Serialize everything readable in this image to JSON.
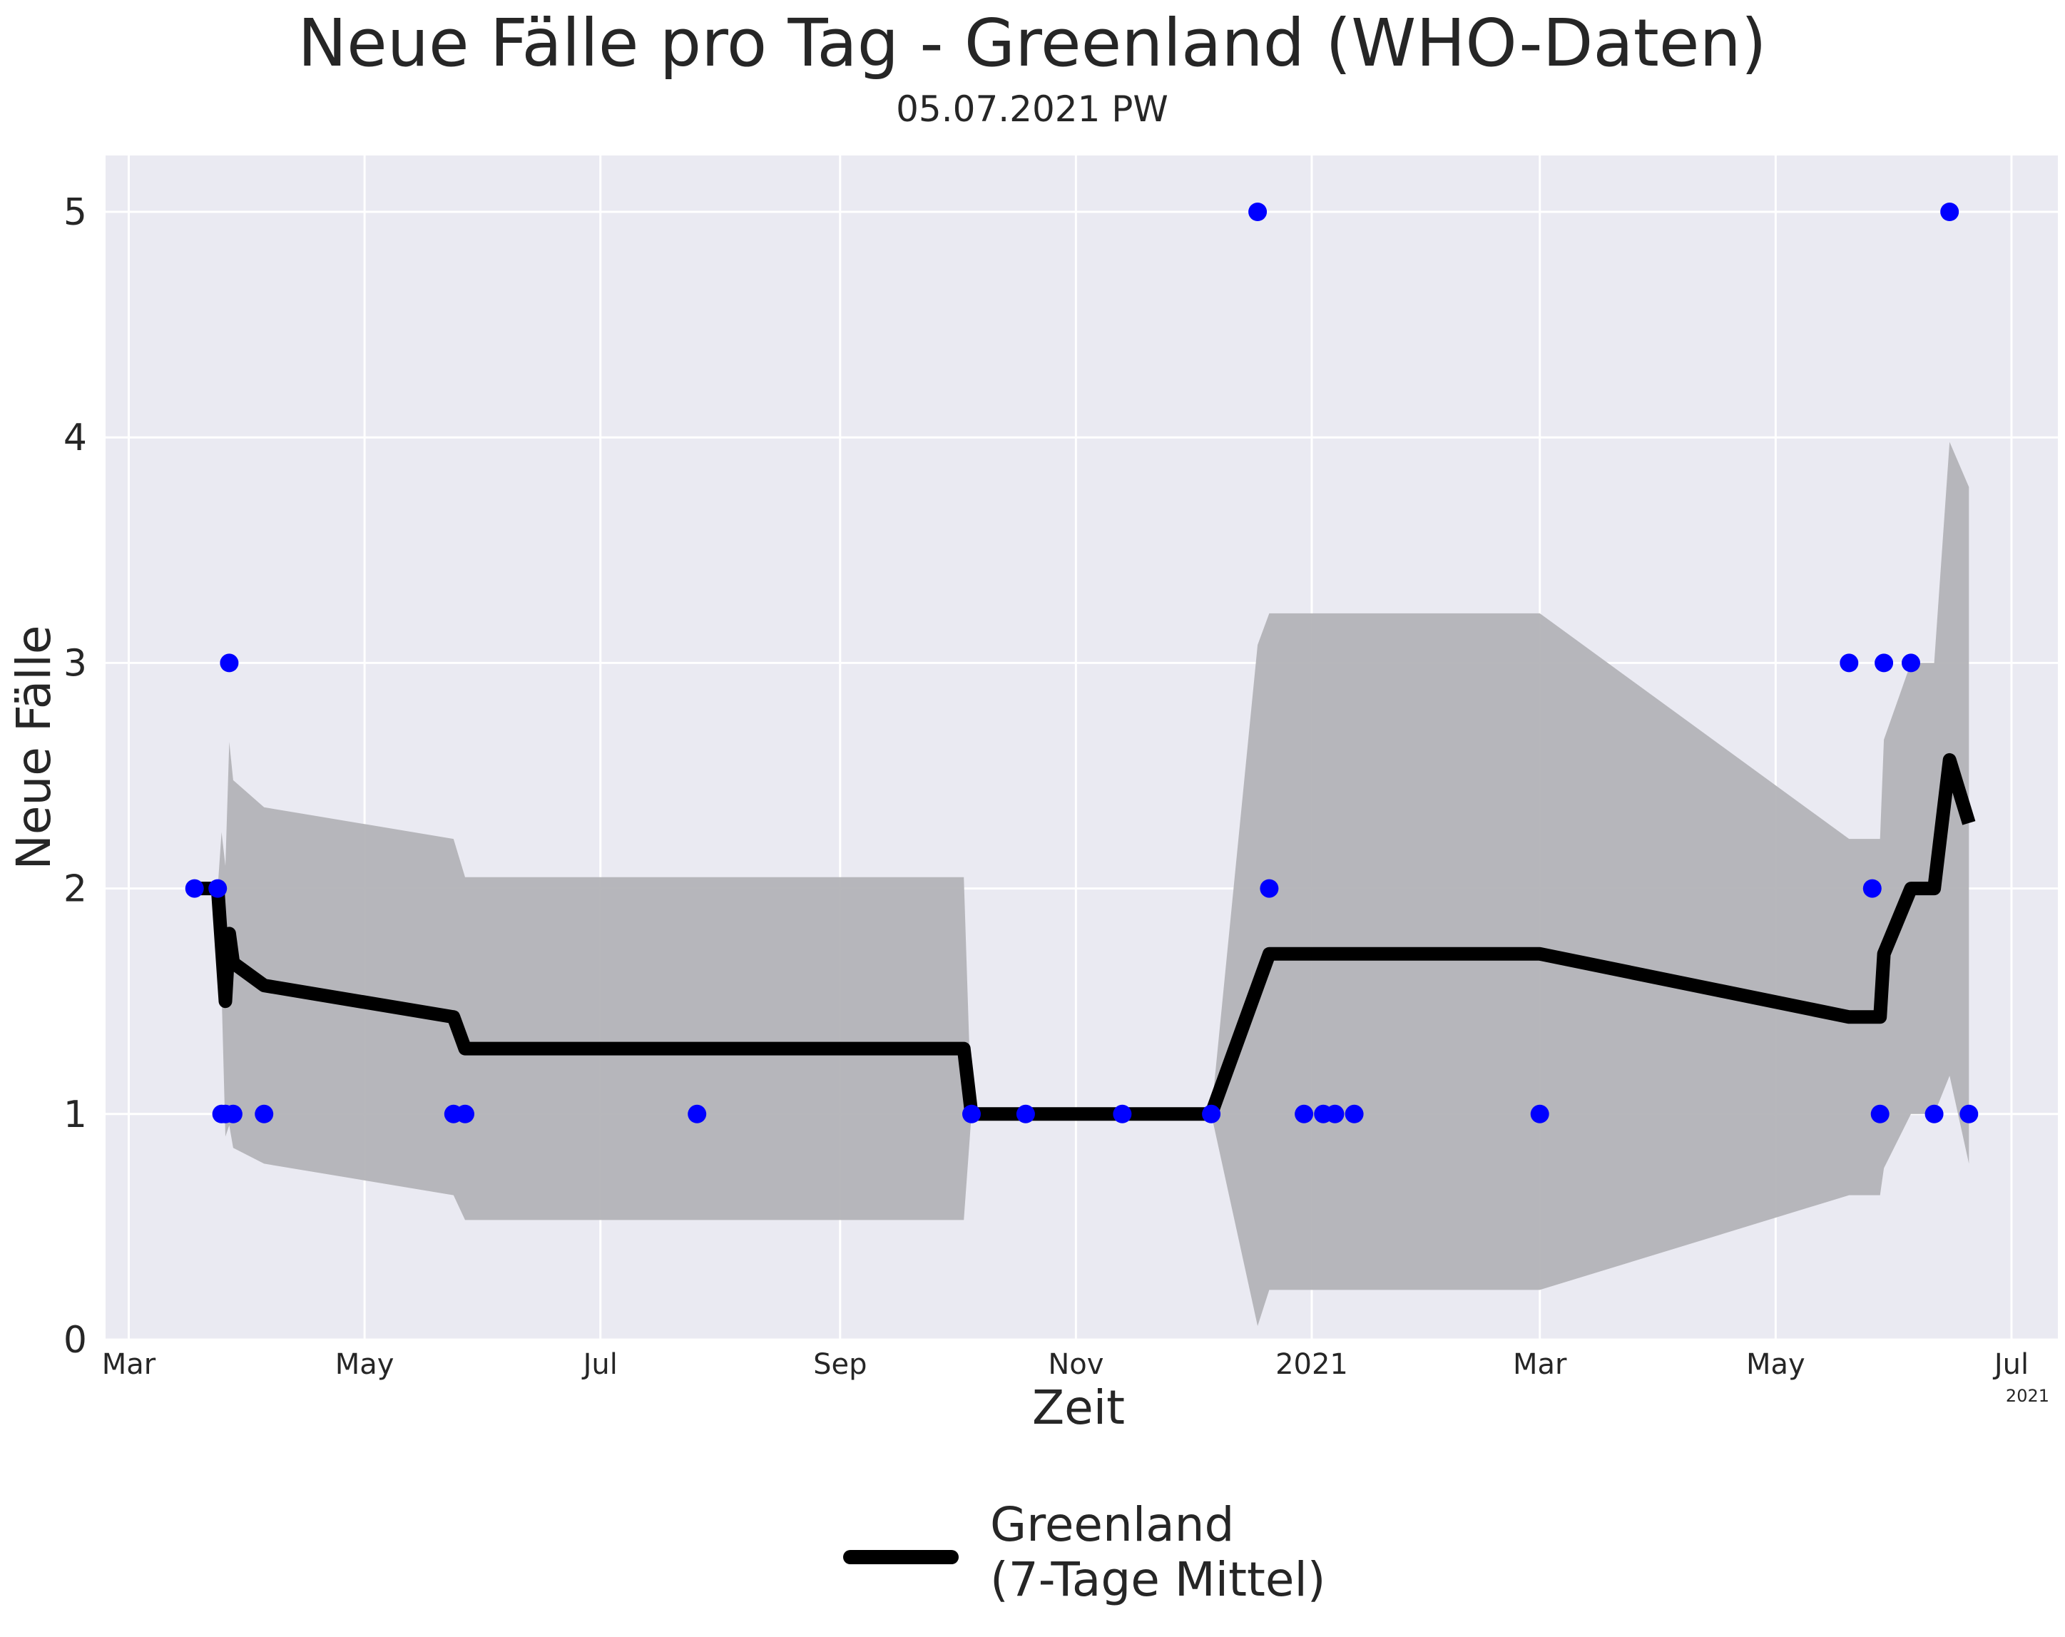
{
  "chart_data": {
    "type": "line",
    "title": "Neue Fälle pro Tag - Greenland (WHO-Daten)",
    "subtitle": "05.07.2021 PW",
    "xlabel": "Zeit",
    "ylabel": "Neue Fälle",
    "x_axis": {
      "type": "date",
      "range": [
        "2020-02-24",
        "2021-07-13"
      ],
      "ticks": [
        {
          "date": "2020-03-01",
          "label": "Mar"
        },
        {
          "date": "2020-05-01",
          "label": "May"
        },
        {
          "date": "2020-07-01",
          "label": "Jul"
        },
        {
          "date": "2020-09-01",
          "label": "Sep"
        },
        {
          "date": "2020-11-01",
          "label": "Nov"
        },
        {
          "date": "2021-01-01",
          "label": "2021"
        },
        {
          "date": "2021-03-01",
          "label": "Mar"
        },
        {
          "date": "2021-05-01",
          "label": "May"
        },
        {
          "date": "2021-07-01",
          "label": "Jul"
        }
      ],
      "offset_label": "2021"
    },
    "y_axis": {
      "range": [
        0,
        5.25
      ],
      "ticks": [
        0,
        1,
        2,
        3,
        4,
        5
      ]
    },
    "grid": true,
    "legend": {
      "placement": "bottom-center",
      "entries": [
        {
          "label_line1": "Greenland",
          "label_line2": "(7-Tage Mittel)"
        }
      ]
    },
    "colors": {
      "background": "#eaeaf2",
      "grid": "#ffffff",
      "line": "#000000",
      "points": "#0000ff",
      "band": "#b3b3b7"
    },
    "scatter_series": {
      "name": "Neue Fälle",
      "points": [
        {
          "x": "2020-03-18",
          "y": 2
        },
        {
          "x": "2020-03-24",
          "y": 2
        },
        {
          "x": "2020-03-25",
          "y": 1
        },
        {
          "x": "2020-03-26",
          "y": 1
        },
        {
          "x": "2020-03-27",
          "y": 3
        },
        {
          "x": "2020-03-28",
          "y": 1
        },
        {
          "x": "2020-04-05",
          "y": 1
        },
        {
          "x": "2020-05-24",
          "y": 1
        },
        {
          "x": "2020-05-27",
          "y": 1
        },
        {
          "x": "2020-07-26",
          "y": 1
        },
        {
          "x": "2020-10-05",
          "y": 1
        },
        {
          "x": "2020-10-19",
          "y": 1
        },
        {
          "x": "2020-11-13",
          "y": 1
        },
        {
          "x": "2020-12-06",
          "y": 1
        },
        {
          "x": "2020-12-18",
          "y": 5
        },
        {
          "x": "2020-12-21",
          "y": 2
        },
        {
          "x": "2020-12-30",
          "y": 1
        },
        {
          "x": "2021-01-04",
          "y": 1
        },
        {
          "x": "2021-01-07",
          "y": 1
        },
        {
          "x": "2021-01-12",
          "y": 1
        },
        {
          "x": "2021-03-01",
          "y": 1
        },
        {
          "x": "2021-05-20",
          "y": 3
        },
        {
          "x": "2021-05-26",
          "y": 2
        },
        {
          "x": "2021-05-28",
          "y": 1
        },
        {
          "x": "2021-05-29",
          "y": 3
        },
        {
          "x": "2021-06-05",
          "y": 3
        },
        {
          "x": "2021-06-11",
          "y": 1
        },
        {
          "x": "2021-06-15",
          "y": 5
        },
        {
          "x": "2021-06-20",
          "y": 1
        }
      ]
    },
    "series": [
      {
        "name": "Greenland (7-Tage Mittel)",
        "points": [
          {
            "x": "2020-03-18",
            "y": 2.0
          },
          {
            "x": "2020-03-24",
            "y": 2.0
          },
          {
            "x": "2020-03-26",
            "y": 1.5
          },
          {
            "x": "2020-03-27",
            "y": 1.8
          },
          {
            "x": "2020-03-28",
            "y": 1.67
          },
          {
            "x": "2020-04-05",
            "y": 1.57
          },
          {
            "x": "2020-05-24",
            "y": 1.43
          },
          {
            "x": "2020-05-27",
            "y": 1.29
          },
          {
            "x": "2020-10-03",
            "y": 1.29
          },
          {
            "x": "2020-10-05",
            "y": 1.0
          },
          {
            "x": "2020-12-06",
            "y": 1.0
          },
          {
            "x": "2020-12-21",
            "y": 1.71
          },
          {
            "x": "2021-03-01",
            "y": 1.71
          },
          {
            "x": "2021-05-20",
            "y": 1.43
          },
          {
            "x": "2021-05-28",
            "y": 1.43
          },
          {
            "x": "2021-05-29",
            "y": 1.71
          },
          {
            "x": "2021-06-05",
            "y": 2.0
          },
          {
            "x": "2021-06-11",
            "y": 2.0
          },
          {
            "x": "2021-06-15",
            "y": 2.57
          },
          {
            "x": "2021-06-20",
            "y": 2.29
          }
        ]
      }
    ],
    "band": {
      "points": [
        {
          "x": "2020-03-24",
          "lower": 2.0,
          "upper": 2.0
        },
        {
          "x": "2020-03-25",
          "lower": 1.55,
          "upper": 2.25
        },
        {
          "x": "2020-03-26",
          "lower": 0.9,
          "upper": 2.1
        },
        {
          "x": "2020-03-27",
          "lower": 0.95,
          "upper": 2.65
        },
        {
          "x": "2020-03-28",
          "lower": 0.85,
          "upper": 2.48
        },
        {
          "x": "2020-04-05",
          "lower": 0.78,
          "upper": 2.36
        },
        {
          "x": "2020-05-24",
          "lower": 0.64,
          "upper": 2.22
        },
        {
          "x": "2020-05-27",
          "lower": 0.53,
          "upper": 2.05
        },
        {
          "x": "2020-10-03",
          "lower": 0.53,
          "upper": 2.05
        },
        {
          "x": "2020-10-05",
          "lower": 1.0,
          "upper": 1.0
        },
        {
          "x": "2020-12-06",
          "lower": 1.0,
          "upper": 1.0
        },
        {
          "x": "2020-12-18",
          "lower": 0.06,
          "upper": 3.08
        },
        {
          "x": "2020-12-21",
          "lower": 0.22,
          "upper": 3.22
        },
        {
          "x": "2021-03-01",
          "lower": 0.22,
          "upper": 3.22
        },
        {
          "x": "2021-05-20",
          "lower": 0.64,
          "upper": 2.22
        },
        {
          "x": "2021-05-28",
          "lower": 0.64,
          "upper": 2.22
        },
        {
          "x": "2021-05-29",
          "lower": 0.76,
          "upper": 2.66
        },
        {
          "x": "2021-06-05",
          "lower": 1.0,
          "upper": 3.0
        },
        {
          "x": "2021-06-11",
          "lower": 1.0,
          "upper": 3.0
        },
        {
          "x": "2021-06-15",
          "lower": 1.17,
          "upper": 3.98
        },
        {
          "x": "2021-06-20",
          "lower": 0.78,
          "upper": 3.78
        }
      ]
    }
  }
}
